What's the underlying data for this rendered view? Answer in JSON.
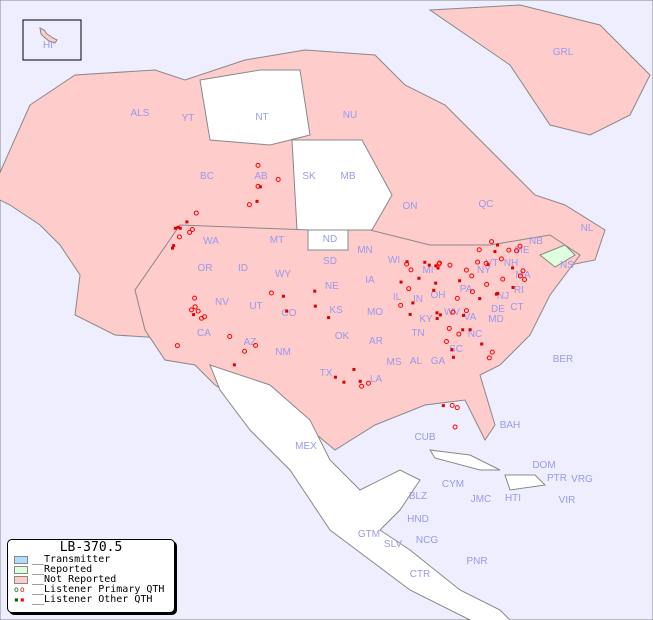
{
  "title": "LB-370.5",
  "colors": {
    "ocean": "#eeeeff",
    "transmitter": "#aaddff",
    "reported": "#ddffdd",
    "not_reported": "#ffcccc",
    "no_data": "#ffffff",
    "primary_qth": "#ff0000",
    "other_qth": "#dd0000",
    "label": "#9999ee"
  },
  "legend": {
    "items": [
      {
        "label": "__Transmitter",
        "color": "#aaddff"
      },
      {
        "label": "__Reported",
        "color": "#ddffdd"
      },
      {
        "label": "__Not Reported",
        "color": "#ffcccc"
      },
      {
        "label": "__Listener Primary QTH",
        "marker": "circle"
      },
      {
        "label": "__Listener Other QTH",
        "marker": "square"
      }
    ]
  },
  "regions": [
    "HI",
    "ALS",
    "YT",
    "NT",
    "NU",
    "GRL",
    "BC",
    "AB",
    "SK",
    "MB",
    "ON",
    "QC",
    "NL",
    "NS",
    "WA",
    "OR",
    "CA",
    "NV",
    "ID",
    "MT",
    "WY",
    "UT",
    "AZ",
    "CO",
    "NM",
    "ND",
    "SD",
    "NE",
    "KS",
    "OK",
    "TX",
    "MN",
    "IA",
    "MO",
    "AR",
    "LA",
    "WI",
    "IL",
    "MS",
    "AL",
    "GA",
    "TN",
    "KY",
    "IN",
    "OH",
    "MI",
    "PA",
    "NY",
    "WV",
    "VA",
    "NC",
    "SC",
    "MD",
    "DE",
    "NJ",
    "CT",
    "RI",
    "MA",
    "VT",
    "NH",
    "ME",
    "NB",
    "BER",
    "BAH",
    "CUB",
    "MEX",
    "CYM",
    "JMC",
    "HTI",
    "DOM",
    "PTR",
    "VRG",
    "VIR",
    "BLZ",
    "GTM",
    "HND",
    "SLV",
    "NCG",
    "CTR",
    "PNR"
  ]
}
